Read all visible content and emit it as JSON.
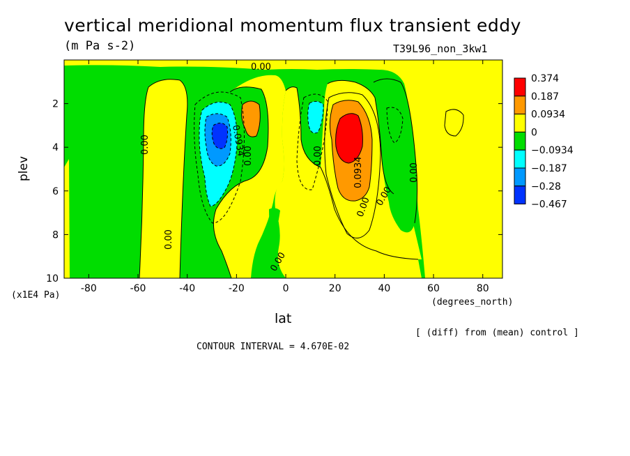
{
  "chart_data": {
    "type": "contour",
    "title": "vertical meridional momentum flux transient eddy",
    "units": "(m Pa s-2)",
    "run_label": "T39L96_non_3kw1",
    "xlabel": "lat",
    "x_units": "(degrees_north)",
    "ylabel": "plev",
    "y_units": "(x1E4 Pa)",
    "xlim": [
      -90,
      88
    ],
    "ylim": [
      10,
      0
    ],
    "x_ticks": [
      "-80",
      "-60",
      "-40",
      "-20",
      "0",
      "20",
      "40",
      "60",
      "80"
    ],
    "y_ticks": [
      "2",
      "4",
      "6",
      "8",
      "10"
    ],
    "colorbar": {
      "levels": [
        "0.374",
        "0.187",
        "0.0934",
        "0",
        "−0.0934",
        "−0.187",
        "−0.28",
        "−0.467"
      ],
      "colors": [
        "#ff0000",
        "#ff9900",
        "#ffff00",
        "#00dd00",
        "#00ffff",
        "#0099ff",
        "#0033ff"
      ]
    },
    "contour_labels": [
      "0.00",
      "0.00",
      "0.00",
      "0.00",
      "0.00",
      "0.00",
      "0.00",
      "0.00",
      "0.00",
      "0.0934",
      "0.0934"
    ],
    "features": [
      {
        "sign": "negative",
        "center_lat": -25,
        "center_plev": 3.5,
        "peak": -0.467
      },
      {
        "sign": "positive",
        "center_lat": -13,
        "center_plev": 3.0,
        "peak": 0.187
      },
      {
        "sign": "negative",
        "center_lat": 13,
        "center_plev": 2.7,
        "peak": -0.187
      },
      {
        "sign": "positive",
        "center_lat": 27,
        "center_plev": 3.8,
        "peak": 0.374
      }
    ],
    "grid": false
  },
  "footer": {
    "diff_note": "[ (diff) from (mean) control ]",
    "contour_interval": "CONTOUR INTERVAL = 4.670E-02"
  }
}
